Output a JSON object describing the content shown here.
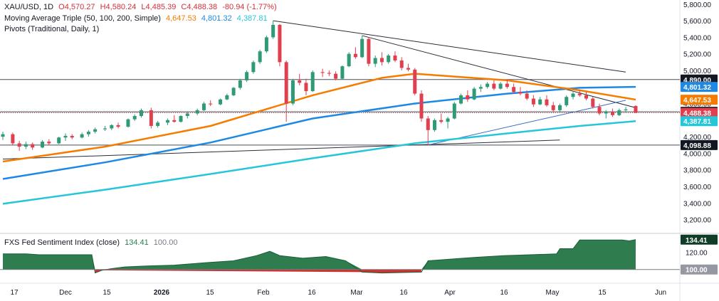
{
  "header": {
    "symbol": "XAU/USD, 1D",
    "open": "O4,570.27",
    "high": "H4,580.24",
    "low": "L4,485.39",
    "close": "C4,488.38",
    "change": "-80.94 (-1.77%)"
  },
  "indicators": {
    "ma_label": "Moving Average Triple (50, 100, 200, Simple)",
    "ma50": "4,647.53",
    "ma100": "4,801.32",
    "ma200": "4,387.81",
    "pivots_label": "Pivots (Traditional, Daily, 1)"
  },
  "sub_panel": {
    "label": "FXS Fed Sentiment Index (close)",
    "value": "134.41",
    "reference": "100.00"
  },
  "colors": {
    "up": "#2e9a76",
    "down": "#e0404d",
    "ma50": "#f57c00",
    "ma100": "#1e88e5",
    "ma200": "#26c6da",
    "sentiment_fill": "#2f7d4f",
    "sentiment_negative": "#d32f2f"
  },
  "chart_data": [
    {
      "type": "candlestick",
      "ylim": [
        3050,
        5850
      ],
      "y_ticks": [
        "5,800.00",
        "5,600.00",
        "5,400.00",
        "5,200.00",
        "5,000.00",
        "4,800.00",
        "4,600.00",
        "4,400.00",
        "4,200.00",
        "4,000.00",
        "3,800.00",
        "3,600.00",
        "3,400.00",
        "3,200.00"
      ],
      "x_ticks": [
        "17",
        "Dec",
        "15",
        "2026",
        "15",
        "Feb",
        "16",
        "Mar",
        "16",
        "Apr",
        "16",
        "May",
        "15",
        "Jun"
      ],
      "price_badges": [
        {
          "label": "4,890.00",
          "value": 4890,
          "color": "#131722"
        },
        {
          "label": "4,801.32",
          "value": 4801,
          "color": "#1e88e5"
        },
        {
          "label": "4,647.53",
          "value": 4647,
          "color": "#f57c00"
        },
        {
          "label": "4,500.00",
          "value": 4500,
          "color": "#131722"
        },
        {
          "label": "4,488.38",
          "value": 4488,
          "color": "#e0404d"
        },
        {
          "label": "4,387.81",
          "value": 4388,
          "color": "#26c6da"
        },
        {
          "label": "4,098.88",
          "value": 4099,
          "color": "#131722"
        }
      ],
      "horizontal_levels": [
        4890,
        4500,
        4099
      ],
      "current_price": 4488.38,
      "candle_days": [
        [
          "2025-11-13",
          4200,
          4260,
          4160,
          4230
        ],
        [
          "2025-11-16",
          4230,
          4250,
          4100,
          4120
        ],
        [
          "2025-11-18",
          4120,
          4150,
          4030,
          4080
        ],
        [
          "2025-11-20",
          4080,
          4140,
          4050,
          4110
        ],
        [
          "2025-11-22",
          4110,
          4130,
          4040,
          4070
        ],
        [
          "2025-11-25",
          4070,
          4160,
          4060,
          4140
        ],
        [
          "2025-11-27",
          4140,
          4170,
          4100,
          4120
        ],
        [
          "2025-11-30",
          4120,
          4200,
          4110,
          4190
        ],
        [
          "2025-12-02",
          4190,
          4240,
          4150,
          4210
        ],
        [
          "2025-12-04",
          4210,
          4230,
          4170,
          4190
        ],
        [
          "2025-12-07",
          4190,
          4250,
          4180,
          4230
        ],
        [
          "2025-12-09",
          4230,
          4280,
          4200,
          4260
        ],
        [
          "2025-12-11",
          4260,
          4310,
          4240,
          4290
        ],
        [
          "2025-12-14",
          4290,
          4330,
          4270,
          4300
        ],
        [
          "2025-12-16",
          4300,
          4350,
          4280,
          4340
        ],
        [
          "2025-12-18",
          4340,
          4370,
          4300,
          4320
        ],
        [
          "2025-12-21",
          4320,
          4420,
          4310,
          4410
        ],
        [
          "2025-12-23",
          4410,
          4470,
          4390,
          4450
        ],
        [
          "2025-12-25",
          4450,
          4540,
          4430,
          4520
        ],
        [
          "2025-12-28",
          4520,
          4550,
          4300,
          4330
        ],
        [
          "2025-12-30",
          4330,
          4390,
          4310,
          4370
        ],
        [
          "2026-01-02",
          4370,
          4420,
          4340,
          4400
        ],
        [
          "2026-01-04",
          4400,
          4460,
          4370,
          4380
        ],
        [
          "2026-01-06",
          4380,
          4460,
          4370,
          4450
        ],
        [
          "2026-01-08",
          4450,
          4500,
          4420,
          4480
        ],
        [
          "2026-01-11",
          4480,
          4540,
          4460,
          4520
        ],
        [
          "2026-01-13",
          4520,
          4620,
          4510,
          4600
        ],
        [
          "2026-01-15",
          4600,
          4640,
          4570,
          4590
        ],
        [
          "2026-01-18",
          4590,
          4660,
          4580,
          4650
        ],
        [
          "2026-01-20",
          4650,
          4720,
          4640,
          4700
        ],
        [
          "2026-01-22",
          4700,
          4800,
          4690,
          4790
        ],
        [
          "2026-01-24",
          4790,
          4900,
          4770,
          4880
        ],
        [
          "2026-01-26",
          4880,
          5000,
          4860,
          4980
        ],
        [
          "2026-01-28",
          4980,
          5120,
          4960,
          5100
        ],
        [
          "2026-01-30",
          5100,
          5250,
          5080,
          5230
        ],
        [
          "2026-02-01",
          5230,
          5420,
          5210,
          5400
        ],
        [
          "2026-02-03",
          5400,
          5600,
          5380,
          5550
        ],
        [
          "2026-02-05",
          5550,
          5560,
          5050,
          5100
        ],
        [
          "2026-02-07",
          5100,
          5120,
          4380,
          4600
        ],
        [
          "2026-02-09",
          4600,
          4900,
          4580,
          4880
        ],
        [
          "2026-02-11",
          4880,
          4960,
          4820,
          4850
        ],
        [
          "2026-02-13",
          4850,
          4900,
          4700,
          4750
        ],
        [
          "2026-02-15",
          4750,
          5000,
          4740,
          4980
        ],
        [
          "2026-02-18",
          4980,
          5020,
          4920,
          4970
        ],
        [
          "2026-02-20",
          4970,
          5000,
          4930,
          4960
        ],
        [
          "2026-02-22",
          4960,
          4990,
          4880,
          4900
        ],
        [
          "2026-02-24",
          4900,
          5060,
          4890,
          5050
        ],
        [
          "2026-02-26",
          5050,
          5220,
          5040,
          5200
        ],
        [
          "2026-02-28",
          5200,
          5280,
          5140,
          5160
        ],
        [
          "2026-03-02",
          5160,
          5420,
          5150,
          5380
        ],
        [
          "2026-03-04",
          5380,
          5400,
          5050,
          5080
        ],
        [
          "2026-03-06",
          5080,
          5180,
          5040,
          5150
        ],
        [
          "2026-03-08",
          5150,
          5220,
          5060,
          5100
        ],
        [
          "2026-03-10",
          5100,
          5200,
          5080,
          5180
        ],
        [
          "2026-03-12",
          5180,
          5230,
          5100,
          5120
        ],
        [
          "2026-03-14",
          5120,
          5160,
          5000,
          5030
        ],
        [
          "2026-03-16",
          5030,
          5080,
          4990,
          5010
        ],
        [
          "2026-03-18",
          5010,
          5030,
          4700,
          4720
        ],
        [
          "2026-03-20",
          4720,
          4760,
          4380,
          4420
        ],
        [
          "2026-03-22",
          4420,
          4450,
          4100,
          4280
        ],
        [
          "2026-03-24",
          4280,
          4420,
          4260,
          4400
        ],
        [
          "2026-03-26",
          4400,
          4480,
          4360,
          4380
        ],
        [
          "2026-03-28",
          4380,
          4440,
          4300,
          4420
        ],
        [
          "2026-03-30",
          4420,
          4620,
          4410,
          4600
        ],
        [
          "2026-04-01",
          4600,
          4720,
          4590,
          4700
        ],
        [
          "2026-04-03",
          4700,
          4760,
          4620,
          4650
        ],
        [
          "2026-04-05",
          4650,
          4800,
          4640,
          4780
        ],
        [
          "2026-04-07",
          4780,
          4830,
          4740,
          4800
        ],
        [
          "2026-04-09",
          4800,
          4860,
          4780,
          4840
        ],
        [
          "2026-04-11",
          4840,
          4880,
          4760,
          4780
        ],
        [
          "2026-04-13",
          4780,
          4860,
          4770,
          4840
        ],
        [
          "2026-04-15",
          4840,
          4890,
          4780,
          4800
        ],
        [
          "2026-04-17",
          4800,
          4840,
          4720,
          4740
        ],
        [
          "2026-04-19",
          4740,
          4800,
          4700,
          4720
        ],
        [
          "2026-04-21",
          4720,
          4760,
          4640,
          4660
        ],
        [
          "2026-04-23",
          4660,
          4700,
          4560,
          4590
        ],
        [
          "2026-04-25",
          4590,
          4680,
          4580,
          4650
        ],
        [
          "2026-04-27",
          4650,
          4700,
          4560,
          4580
        ],
        [
          "2026-04-29",
          4580,
          4620,
          4500,
          4520
        ],
        [
          "2026-05-01",
          4520,
          4600,
          4490,
          4580
        ],
        [
          "2026-05-03",
          4580,
          4700,
          4560,
          4680
        ],
        [
          "2026-05-05",
          4680,
          4740,
          4650,
          4720
        ],
        [
          "2026-05-07",
          4720,
          4760,
          4680,
          4700
        ],
        [
          "2026-05-09",
          4700,
          4740,
          4640,
          4660
        ],
        [
          "2026-05-11",
          4660,
          4680,
          4540,
          4560
        ],
        [
          "2026-05-13",
          4560,
          4600,
          4460,
          4480
        ],
        [
          "2026-05-15",
          4480,
          4520,
          4420,
          4500
        ],
        [
          "2026-05-17",
          4500,
          4540,
          4440,
          4460
        ],
        [
          "2026-05-19",
          4460,
          4540,
          4450,
          4520
        ],
        [
          "2026-05-21",
          4520,
          4560,
          4490,
          4530
        ],
        [
          "2026-05-24",
          4570.27,
          4580.24,
          4485.39,
          4488.38
        ]
      ],
      "moving_averages": {
        "ma50": [
          [
            "2025-11-13",
            3900
          ],
          [
            "2025-12-14",
            4080
          ],
          [
            "2026-01-15",
            4330
          ],
          [
            "2026-02-15",
            4700
          ],
          [
            "2026-03-08",
            4910
          ],
          [
            "2026-03-18",
            4960
          ],
          [
            "2026-04-15",
            4880
          ],
          [
            "2026-05-07",
            4760
          ],
          [
            "2026-05-24",
            4647.53
          ]
        ],
        "ma100": [
          [
            "2025-11-13",
            3690
          ],
          [
            "2025-12-14",
            3890
          ],
          [
            "2026-01-15",
            4130
          ],
          [
            "2026-02-15",
            4420
          ],
          [
            "2026-03-18",
            4600
          ],
          [
            "2026-04-15",
            4720
          ],
          [
            "2026-05-07",
            4790
          ],
          [
            "2026-05-24",
            4801.32
          ]
        ],
        "ma200": [
          [
            "2025-11-13",
            3390
          ],
          [
            "2025-12-14",
            3560
          ],
          [
            "2026-01-15",
            3750
          ],
          [
            "2026-02-15",
            3940
          ],
          [
            "2026-03-18",
            4120
          ],
          [
            "2026-04-15",
            4240
          ],
          [
            "2026-05-07",
            4330
          ],
          [
            "2026-05-24",
            4387.81
          ]
        ]
      },
      "trendlines": [
        [
          [
            "2026-02-03",
            5600
          ],
          [
            "2026-05-21",
            4980
          ]
        ],
        [
          [
            "2026-03-02",
            5420
          ],
          [
            "2026-05-24",
            4550
          ]
        ],
        [
          [
            "2025-11-13",
            3930
          ],
          [
            "2026-05-01",
            4160
          ]
        ],
        [
          [
            "2026-03-22",
            4100
          ],
          [
            "2026-05-21",
            4640
          ]
        ]
      ]
    },
    {
      "type": "area",
      "name": "FXS Fed Sentiment Index (close)",
      "ylim": [
        85,
        140
      ],
      "y_ticks": [
        "120.00"
      ],
      "reference_line": 100,
      "points": [
        [
          "2025-11-13",
          118
        ],
        [
          "2025-11-20",
          118
        ],
        [
          "2025-11-24",
          117
        ],
        [
          "2025-12-10",
          117
        ],
        [
          "2025-12-11",
          96
        ],
        [
          "2025-12-13",
          99
        ],
        [
          "2025-12-16",
          101
        ],
        [
          "2025-12-20",
          103
        ],
        [
          "2025-12-26",
          104
        ],
        [
          "2026-01-04",
          105
        ],
        [
          "2026-01-14",
          108
        ],
        [
          "2026-01-22",
          110
        ],
        [
          "2026-01-29",
          116
        ],
        [
          "2026-02-02",
          121
        ],
        [
          "2026-02-05",
          116
        ],
        [
          "2026-02-12",
          113
        ],
        [
          "2026-02-19",
          115
        ],
        [
          "2026-02-25",
          110
        ],
        [
          "2026-03-02",
          97
        ],
        [
          "2026-03-08",
          96
        ],
        [
          "2026-03-20",
          97
        ],
        [
          "2026-03-22",
          110
        ],
        [
          "2026-03-29",
          112
        ],
        [
          "2026-04-05",
          114
        ],
        [
          "2026-04-14",
          116
        ],
        [
          "2026-04-22",
          117
        ],
        [
          "2026-04-30",
          118
        ],
        [
          "2026-05-01",
          124
        ],
        [
          "2026-05-05",
          124
        ],
        [
          "2026-05-07",
          134
        ],
        [
          "2026-05-14",
          134
        ],
        [
          "2026-05-20",
          134
        ],
        [
          "2026-05-22",
          133
        ],
        [
          "2026-05-24",
          134.41
        ]
      ]
    }
  ]
}
